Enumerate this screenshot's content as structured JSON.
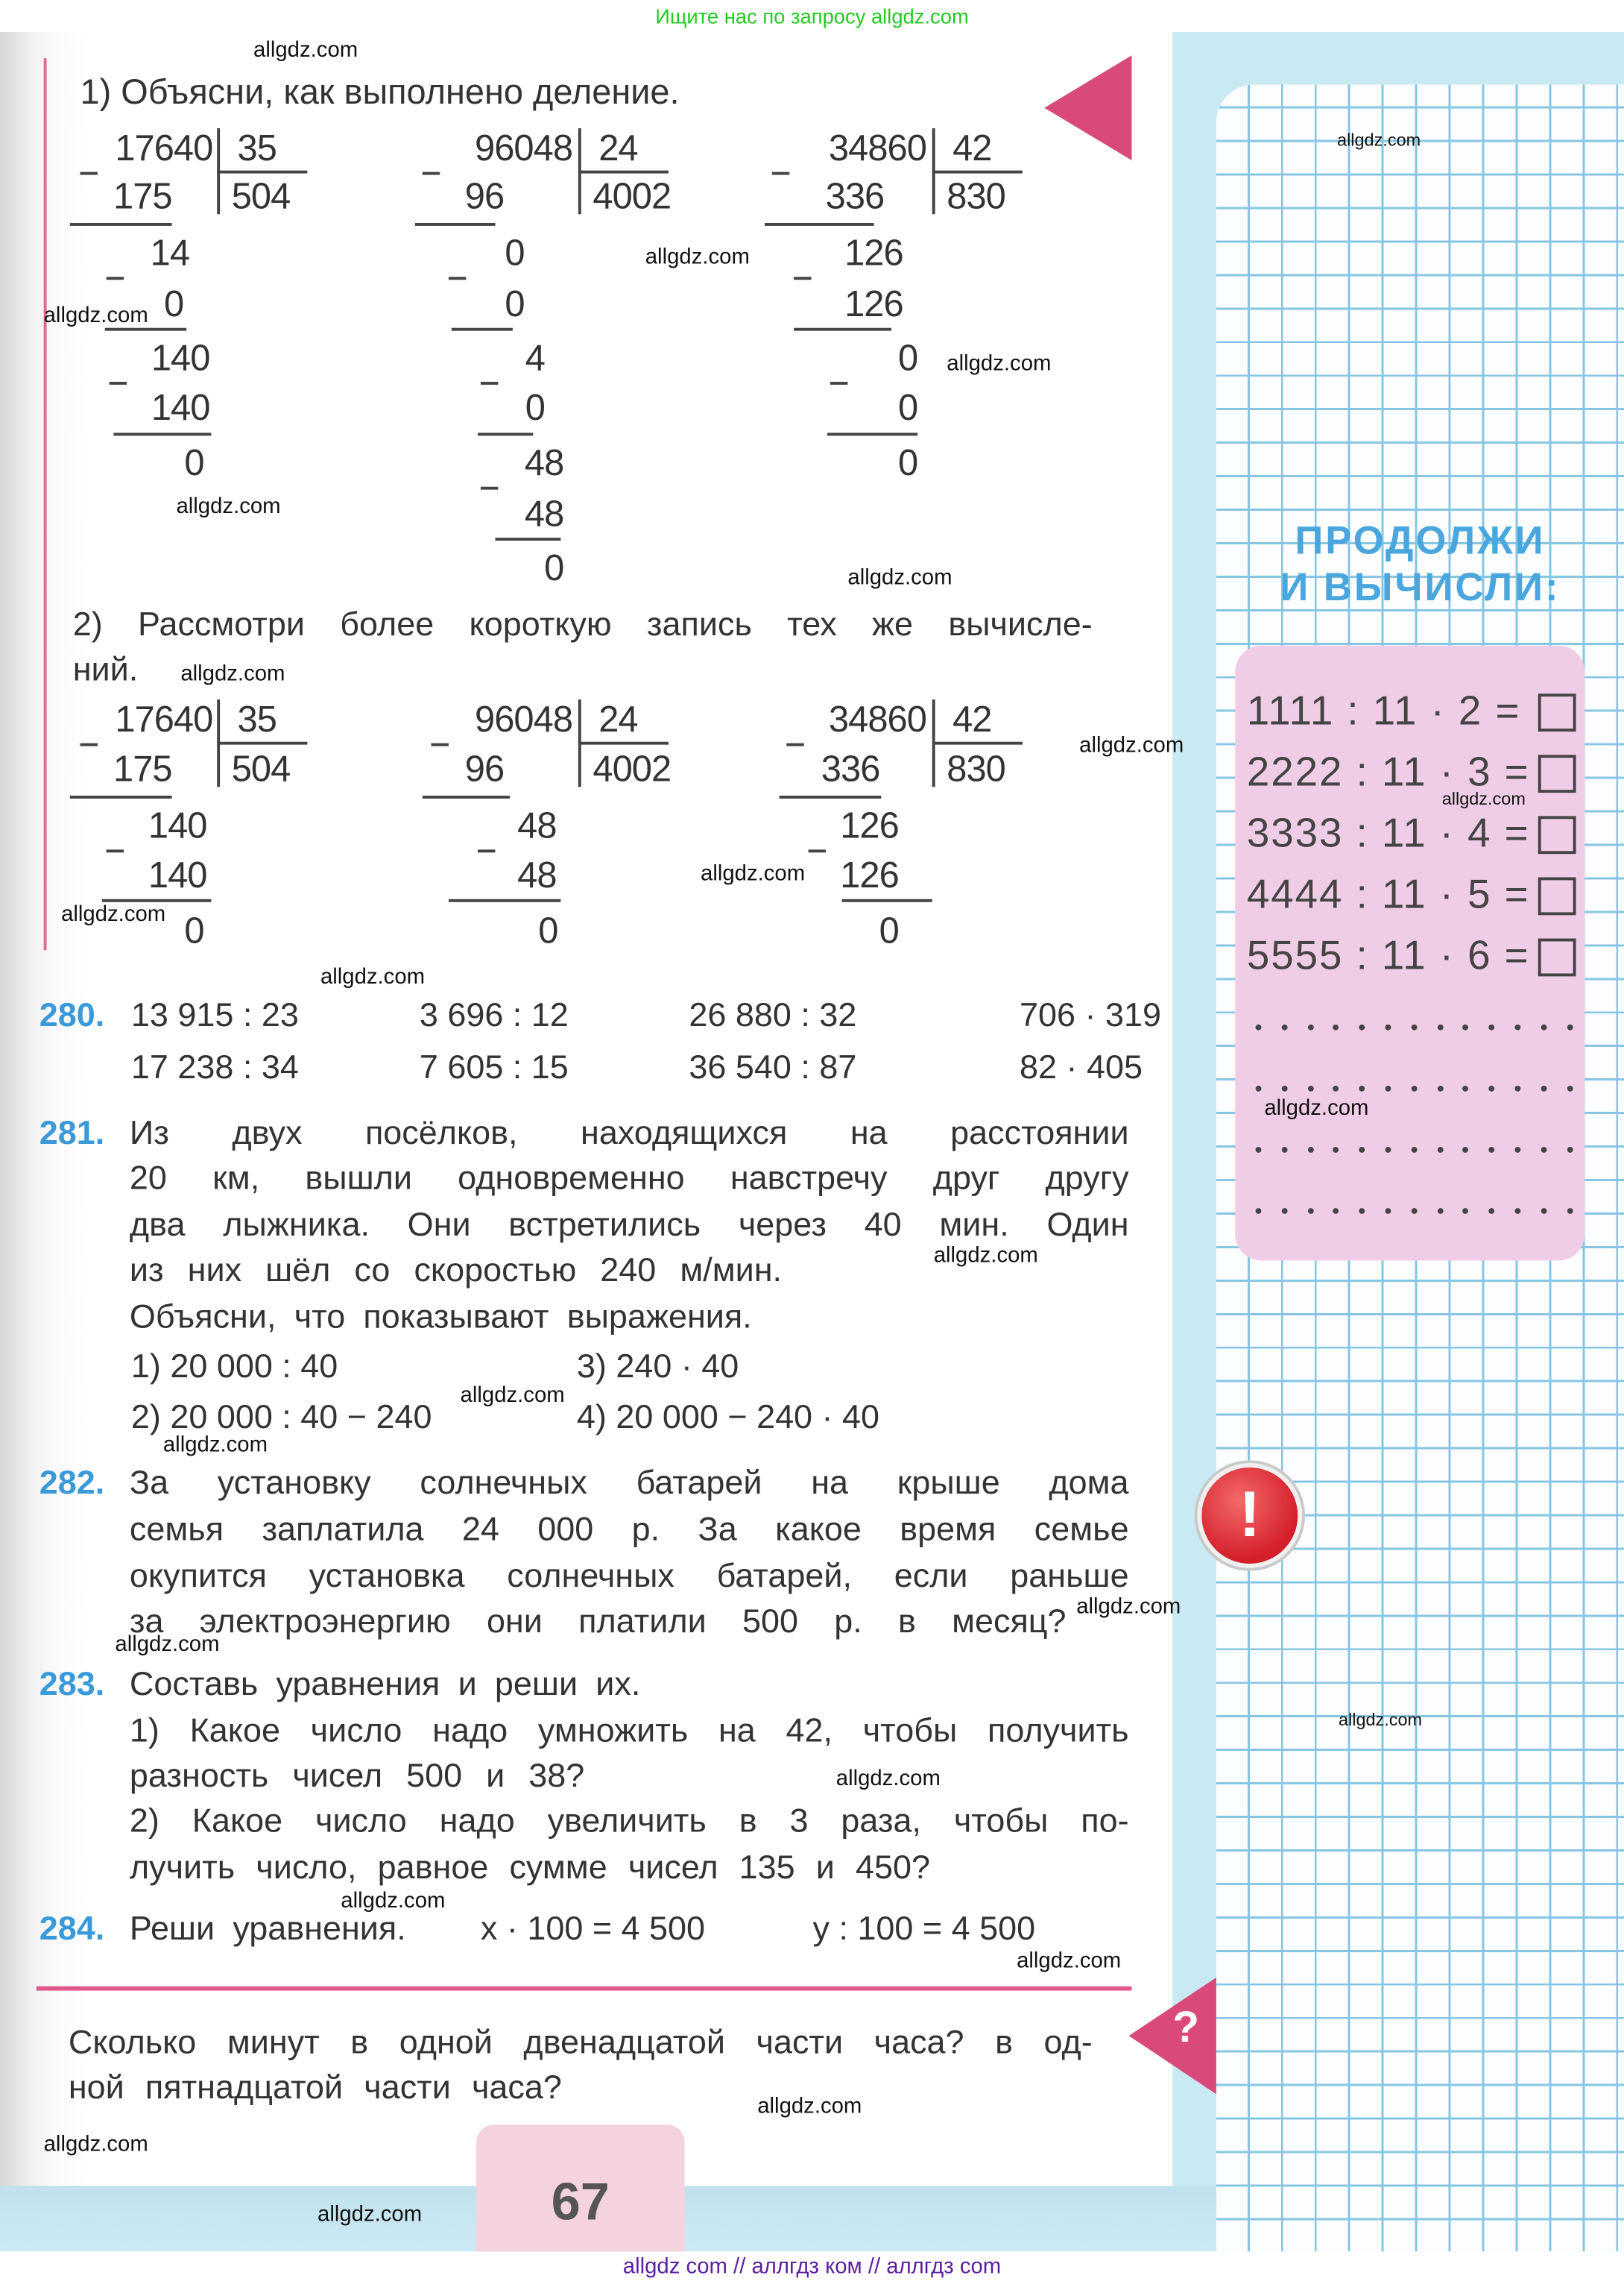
{
  "banner": "Ищите нас по запросу allgdz.com",
  "part1_title": "1) Объясни, как выполнено деление.",
  "part1_divisions": [
    {
      "dividend": "17640",
      "divisor": "35",
      "quotient": "504",
      "steps": [
        "175",
        "14",
        "0",
        "140",
        "140",
        "0"
      ]
    },
    {
      "dividend": "96048",
      "divisor": "24",
      "quotient": "4002",
      "steps": [
        "96",
        "0",
        "0",
        "4",
        "0",
        "48",
        "48",
        "0"
      ]
    },
    {
      "dividend": "34860",
      "divisor": "42",
      "quotient": "830",
      "steps": [
        "336",
        "126",
        "126",
        "0",
        "0",
        "0"
      ]
    }
  ],
  "part2_lines": [
    "2) Рассмотри более короткую запись тех же вычисле-",
    "ний."
  ],
  "part2_divisions": [
    {
      "dividend": "17640",
      "divisor": "35",
      "quotient": "504",
      "steps": [
        "175",
        "140",
        "140",
        "0"
      ]
    },
    {
      "dividend": "96048",
      "divisor": "24",
      "quotient": "4002",
      "steps": [
        "96",
        "48",
        "48",
        "0"
      ]
    },
    {
      "dividend": "34860",
      "divisor": "42",
      "quotient": "830",
      "steps": [
        "336",
        "126",
        "126",
        "0"
      ]
    }
  ],
  "ex280": {
    "label": "280.",
    "items": [
      "13 915 : 23",
      "3 696 : 12",
      "26 880 : 32",
      "706 · 319",
      "17 238 : 34",
      "7 605 : 15",
      "36 540 : 87",
      "82 · 405"
    ]
  },
  "ex281": {
    "label": "281.",
    "lines": [
      "Из двух посёлков, находящихся на расстоянии",
      "20 км, вышли одновременно навстречу друг другу",
      "два лыжника. Они встретились через 40 мин. Один",
      "из них шёл со скоростью 240 м/мин."
    ],
    "prompt": "Объясни, что показывают выражения.",
    "options": [
      "1) 20 000 : 40",
      "3) 240 · 40",
      "2) 20 000 : 40 − 240",
      "4) 20 000 − 240 · 40"
    ]
  },
  "ex282": {
    "label": "282.",
    "lines": [
      "За установку солнечных батарей на крыше дома",
      "семья заплатила 24 000 р. За какое время семье",
      "окупится установка солнечных батарей, если раньше",
      "за электроэнергию они платили 500 р. в месяц?"
    ]
  },
  "ex283": {
    "label": "283.",
    "lines": [
      "Составь уравнения и реши их.",
      "1) Какое число надо умножить на 42, чтобы получить",
      "разность чисел 500 и 38?",
      "2) Какое число надо увеличить в 3 раза, чтобы по-",
      "лучить число, равное сумме чисел 135 и 450?"
    ]
  },
  "ex284": {
    "label": "284.",
    "text": "Реши уравнения.",
    "eq1": "x · 100 = 4 500",
    "eq2": "y : 100 = 4 500"
  },
  "question": {
    "lines": [
      "Сколько минут в одной двенадцатой части часа? в од-",
      "ной пятнадцатой части часа?"
    ],
    "icon": "question-mark-icon"
  },
  "sidebar": {
    "heading": [
      "ПРОДОЛЖИ",
      "И ВЫЧИСЛИ:"
    ],
    "equations": [
      "1111 : 11 · 2 =",
      "2222 : 11 · 3 =",
      "3333 : 11 · 4 =",
      "4444 : 11 · 5 =",
      "5555 : 11 · 6 ="
    ],
    "dot_rows": 4,
    "dots_per_row": 13,
    "icon": "exclamation-icon"
  },
  "page_number": "67",
  "footer": "allgdz com // аллгдз ком // аллгдз com",
  "watermark": "allgdz.com",
  "colors": {
    "accent_pink": "#d94a7a",
    "exercise_blue": "#3a9ad9",
    "banner_green": "#22cc22",
    "footer_purple": "#5a1fa0",
    "grid_blue": "#86c6e3",
    "box_pink": "#f0cde6"
  }
}
